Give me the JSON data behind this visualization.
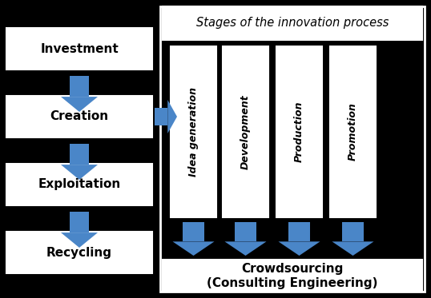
{
  "bg_color": "#000000",
  "arrow_color": "#4a86c8",
  "left_labels": [
    "Investment",
    "Creation",
    "Exploitation",
    "Recycling"
  ],
  "stage_labels": [
    "Idea generation",
    "Development",
    "Production",
    "Promotion"
  ],
  "stages_title": "Stages of the innovation process",
  "bottom_label_line1": "Crowdsourcing",
  "bottom_label_line2": "(Consulting Engineering)",
  "text_color": "#000000",
  "figsize": [
    5.38,
    3.73
  ],
  "dpi": 100
}
